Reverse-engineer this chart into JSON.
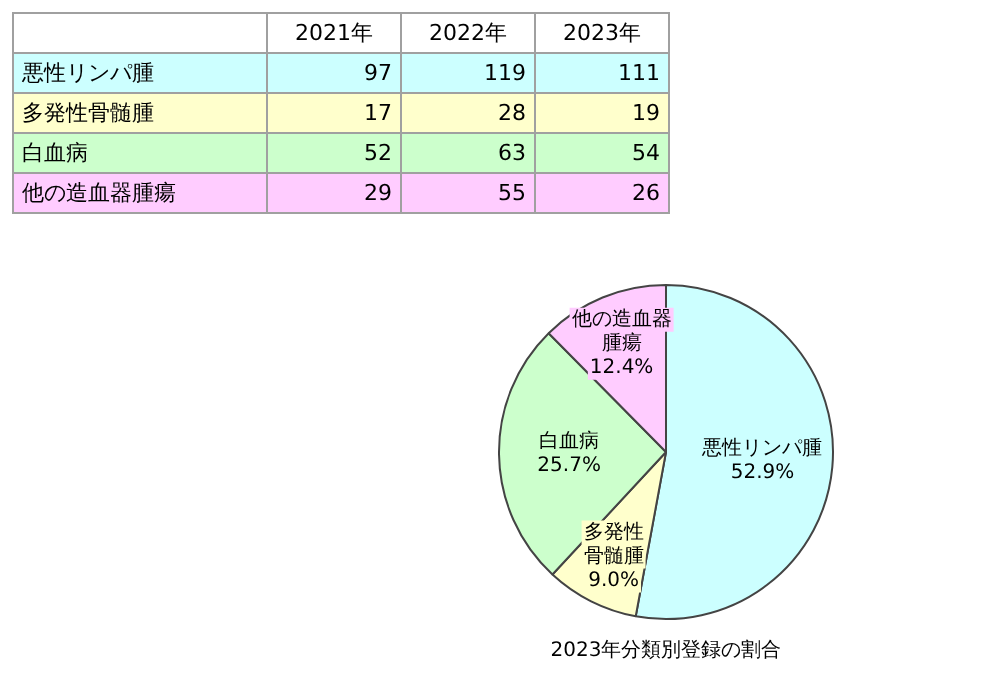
{
  "chart_data": [
    {
      "type": "other",
      "categories": [
        "2021年",
        "2022年",
        "2023年"
      ],
      "data_labels": true,
      "series": [
        {
          "name": "悪性リンパ腫",
          "color": "#ccffff",
          "values": [
            97,
            119,
            111
          ]
        },
        {
          "name": "多発性骨髄腫",
          "color": "#ffffcc",
          "values": [
            17,
            28,
            19
          ]
        },
        {
          "name": "白血病",
          "color": "#ccffcc",
          "values": [
            52,
            63,
            54
          ]
        },
        {
          "name": "他の造血器腫瘍",
          "color": "#ffccff",
          "values": [
            29,
            55,
            26
          ]
        }
      ]
    },
    {
      "type": "pie",
      "title": "2023年分類別登録の割合",
      "categories": [
        "悪性リンパ腫",
        "多発性骨髄腫",
        "白血病",
        "他の造血器腫瘍"
      ],
      "values": [
        52.9,
        9.0,
        25.7,
        12.4
      ],
      "colors": [
        "#ccffff",
        "#ffffcc",
        "#ccffcc",
        "#ffccff"
      ],
      "value_labels": [
        "52.9%",
        "9.0%",
        "25.7%",
        "12.4%"
      ]
    }
  ]
}
